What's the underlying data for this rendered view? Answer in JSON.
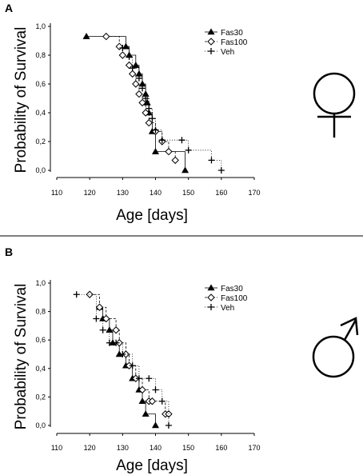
{
  "chart_data": [
    {
      "panel": "A",
      "type": "line",
      "xlabel": "Age [days]",
      "ylabel": "Probability of Survival",
      "xlim": [
        110,
        170
      ],
      "ylim": [
        0,
        1.0
      ],
      "x_ticks": [
        "110",
        "120",
        "130",
        "140",
        "150",
        "160",
        "170"
      ],
      "y_ticks": [
        "0,0",
        "0,2",
        "0,4",
        "0,6",
        "0,8",
        "1,0"
      ],
      "legend_position": "top-right",
      "symbol": "female",
      "series": [
        {
          "name": "Fas30",
          "marker": "triangle",
          "line": "solid",
          "x": [
            119,
            131,
            132,
            134,
            135,
            136,
            137,
            137.5,
            138,
            139,
            140,
            149
          ],
          "y": [
            0.93,
            0.86,
            0.8,
            0.73,
            0.67,
            0.6,
            0.53,
            0.47,
            0.4,
            0.27,
            0.13,
            0.0
          ]
        },
        {
          "name": "Fas100",
          "marker": "diamond",
          "line": "dashed",
          "x": [
            125,
            129,
            130,
            132,
            133,
            134,
            135,
            136,
            137,
            138,
            140,
            142,
            144,
            146
          ],
          "y": [
            0.93,
            0.86,
            0.8,
            0.73,
            0.67,
            0.6,
            0.53,
            0.47,
            0.4,
            0.33,
            0.27,
            0.2,
            0.13,
            0.07
          ]
        },
        {
          "name": "Veh",
          "marker": "plus",
          "line": "dotted",
          "x": [
            130,
            132,
            133,
            135,
            136,
            137,
            138,
            139,
            140,
            142,
            148,
            150,
            157,
            160
          ],
          "y": [
            0.85,
            0.79,
            0.71,
            0.64,
            0.57,
            0.5,
            0.43,
            0.36,
            0.28,
            0.21,
            0.21,
            0.14,
            0.07,
            0.0
          ]
        }
      ]
    },
    {
      "panel": "B",
      "type": "line",
      "xlabel": "Age [days]",
      "ylabel": "Probability of Survival",
      "xlim": [
        110,
        170
      ],
      "ylim": [
        0,
        1.0
      ],
      "x_ticks": [
        "110",
        "120",
        "130",
        "140",
        "150",
        "160",
        "170"
      ],
      "y_ticks": [
        "0,0",
        "0,2",
        "0,4",
        "0,6",
        "0,8",
        "1,0"
      ],
      "legend_position": "top-right",
      "symbol": "male",
      "series": [
        {
          "name": "Fas30",
          "marker": "triangle",
          "line": "solid",
          "x": [
            123,
            124,
            126,
            127,
            129,
            131,
            133,
            135,
            136,
            137,
            140
          ],
          "y": [
            0.83,
            0.75,
            0.67,
            0.58,
            0.5,
            0.42,
            0.33,
            0.25,
            0.17,
            0.08,
            0.0
          ]
        },
        {
          "name": "Fas100",
          "marker": "diamond",
          "line": "dashed",
          "x": [
            120,
            123,
            125,
            128,
            129,
            131,
            132,
            134,
            136,
            138,
            139,
            143,
            144
          ],
          "y": [
            0.92,
            0.83,
            0.75,
            0.67,
            0.58,
            0.5,
            0.42,
            0.33,
            0.25,
            0.17,
            0.17,
            0.08,
            0.08
          ]
        },
        {
          "name": "Veh",
          "marker": "plus",
          "line": "dotted",
          "x": [
            116,
            122,
            124,
            126,
            128,
            130,
            133,
            135,
            138,
            140,
            142,
            144
          ],
          "y": [
            0.92,
            0.75,
            0.67,
            0.58,
            0.58,
            0.5,
            0.42,
            0.33,
            0.33,
            0.25,
            0.17,
            0.0
          ]
        }
      ]
    }
  ]
}
